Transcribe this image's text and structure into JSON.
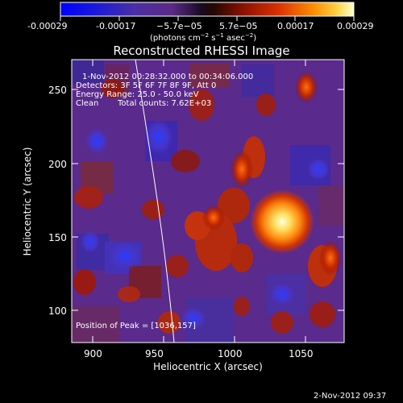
{
  "colorbar": {
    "ticks": [
      "-0.00029",
      "-0.00017",
      "−5.7e−05",
      "5.7e−05",
      "0.00017",
      "0.00029"
    ],
    "unit_main": "(photons cm",
    "unit_exp1": "−2",
    "unit_mid1": " s",
    "unit_exp2": "−1",
    "unit_mid2": " asec",
    "unit_exp3": "−2",
    "unit_close": ")"
  },
  "plot": {
    "title": "Reconstructed RHESSI Image",
    "xlabel": "Heliocentric X (arcsec)",
    "ylabel": "Heliocentric Y (arcsec)",
    "xticks": [
      "900",
      "950",
      "1000",
      "1050"
    ],
    "yticks": [
      "250",
      "200",
      "150",
      "100"
    ],
    "xrange": [
      885,
      1077
    ],
    "yrange": [
      78,
      270
    ],
    "limb": "solar limb",
    "peak_position": [
      1036,
      157
    ]
  },
  "info": {
    "time": "1-Nov-2012 00:28:32.000 to 00:34:06.000",
    "detectors": "Detectors: 3F 5F 6F 7F 8F 9F, Att 0",
    "energy": "Energy Range: 25.0 - 50.0 keV",
    "clean": "Clean",
    "counts": "Total counts: 7.62E+03",
    "peak": "Position of Peak = [1036,157]"
  },
  "footer": {
    "date": "2-Nov-2012 09:37"
  },
  "colors": {
    "background": "#000000",
    "text": "#ffffff",
    "axes": "#ffffff"
  }
}
